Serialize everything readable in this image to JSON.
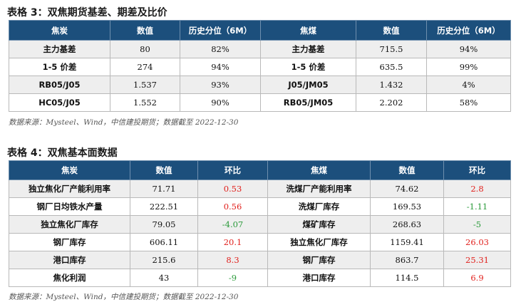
{
  "table1": {
    "caption": "表格 3：双焦期货基差、期差及比价",
    "headers": [
      "焦炭",
      "数值",
      "历史分位（6M）",
      "焦煤",
      "数值",
      "历史分位（6M）"
    ],
    "rows": [
      [
        "主力基差",
        "80",
        "82%",
        "主力基差",
        "715.5",
        "94%"
      ],
      [
        "1-5 价差",
        "274",
        "94%",
        "1-5 价差",
        "635.5",
        "99%"
      ],
      [
        "RB05/J05",
        "1.537",
        "93%",
        "J05/JM05",
        "1.432",
        "4%"
      ],
      [
        "HC05/J05",
        "1.552",
        "90%",
        "RB05/JM05",
        "2.202",
        "58%"
      ]
    ],
    "source": "数据来源：Mysteel、Wind，中信建投期货；数据截至 2022-12-30"
  },
  "table2": {
    "caption": "表格 4：双焦基本面数据",
    "headers": [
      "焦炭",
      "数值",
      "环比",
      "焦煤",
      "数值",
      "环比"
    ],
    "rows": [
      [
        "独立焦化厂产能利用率",
        "71.71",
        "0.53",
        "洗煤厂产能利用率",
        "74.62",
        "2.8"
      ],
      [
        "钢厂日均铁水产量",
        "222.51",
        "0.56",
        "洗煤厂库存",
        "169.53",
        "-1.11"
      ],
      [
        "独立焦化厂库存",
        "79.05",
        "-4.07",
        "煤矿库存",
        "268.63",
        "-5"
      ],
      [
        "钢厂库存",
        "606.11",
        "20.1",
        "独立焦化厂库存",
        "1159.41",
        "26.03"
      ],
      [
        "港口库存",
        "215.6",
        "8.3",
        "钢厂库存",
        "863.7",
        "25.31"
      ],
      [
        "焦化利润",
        "43",
        "-9",
        "港口库存",
        "114.5",
        "6.9"
      ]
    ],
    "source": "数据来源：Mysteel、Wind，中信建投期货；数据截至 2022-12-30"
  },
  "colors": {
    "header_bg": "#1c4f7c",
    "positive_change": "#e1201c",
    "negative_change": "#2a9a3a"
  }
}
